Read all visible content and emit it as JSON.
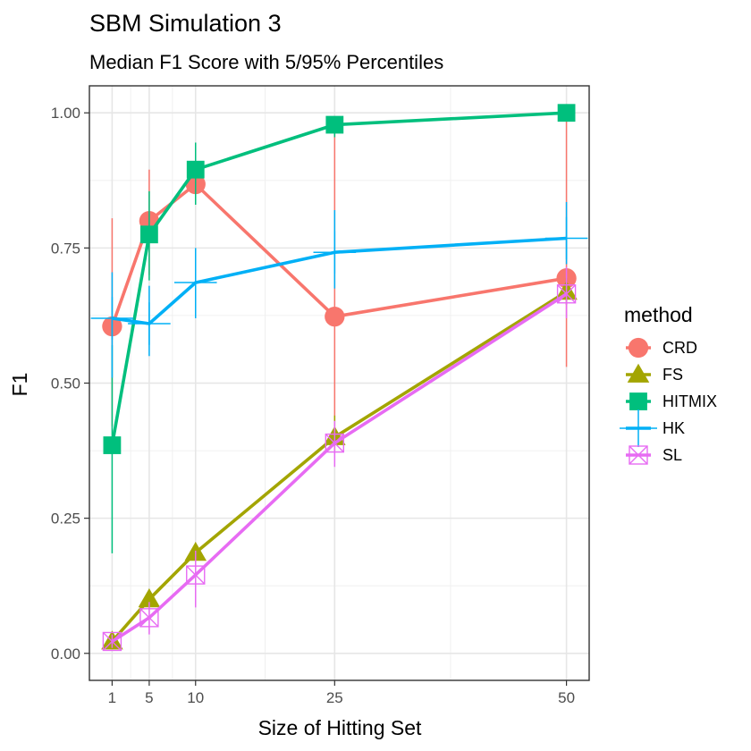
{
  "chart_data": {
    "type": "line",
    "title": "SBM Simulation 3",
    "subtitle": "Median F1 Score with 5/95% Percentiles",
    "xlabel": "Size of Hitting Set",
    "ylabel": "F1",
    "x": [
      1,
      5,
      10,
      25,
      50
    ],
    "xlim": [
      -1.45,
      52.45
    ],
    "ylim": [
      -0.05,
      1.05
    ],
    "x_ticks": [
      1,
      5,
      10,
      25,
      50
    ],
    "x_tick_labels": [
      "1",
      "5",
      "10",
      "25",
      "50"
    ],
    "x_minor_ticks": [
      3,
      7.5,
      17.5,
      37.5
    ],
    "y_ticks": [
      0,
      0.25,
      0.5,
      0.75,
      1.0
    ],
    "y_tick_labels": [
      "0.00",
      "0.25",
      "0.50",
      "0.75",
      "1.00"
    ],
    "grid": true,
    "legend_title": "method",
    "legend_position": "right",
    "series": [
      {
        "name": "CRD",
        "color": "#F8766D",
        "shape": "circle",
        "x": [
          1,
          5,
          10,
          25,
          50
        ],
        "values": [
          0.605,
          0.8,
          0.868,
          0.623,
          0.694
        ],
        "lower": [
          0.42,
          0.7,
          0.83,
          0.43,
          0.53
        ],
        "upper": [
          0.805,
          0.895,
          0.91,
          0.985,
          0.99
        ]
      },
      {
        "name": "FS",
        "color": "#A3A500",
        "shape": "triangle",
        "x": [
          1,
          5,
          10,
          25,
          50
        ],
        "values": [
          0.022,
          0.1,
          0.186,
          0.4,
          0.669
        ],
        "lower": [
          0.012,
          0.085,
          0.165,
          0.375,
          0.645
        ],
        "upper": [
          0.035,
          0.115,
          0.205,
          0.44,
          0.695
        ]
      },
      {
        "name": "HITMIX",
        "color": "#00BF7D",
        "shape": "square",
        "x": [
          1,
          5,
          10,
          25,
          50
        ],
        "values": [
          0.385,
          0.775,
          0.895,
          0.978,
          1.0
        ],
        "lower": [
          0.185,
          0.69,
          0.83,
          0.955,
          0.99
        ],
        "upper": [
          0.57,
          0.855,
          0.945,
          0.99,
          1.0
        ]
      },
      {
        "name": "HK",
        "color": "#00B0F6",
        "shape": "plus",
        "x": [
          1,
          5,
          10,
          25,
          50
        ],
        "values": [
          0.62,
          0.61,
          0.686,
          0.742,
          0.768
        ],
        "lower": [
          0.51,
          0.55,
          0.62,
          0.675,
          0.72
        ],
        "upper": [
          0.705,
          0.68,
          0.75,
          0.82,
          0.835
        ]
      },
      {
        "name": "SL",
        "color": "#E76BF3",
        "shape": "square-x",
        "x": [
          1,
          5,
          10,
          25,
          50
        ],
        "values": [
          0.022,
          0.066,
          0.145,
          0.389,
          0.665
        ],
        "lower": [
          0.01,
          0.035,
          0.085,
          0.345,
          0.62
        ],
        "upper": [
          0.035,
          0.095,
          0.19,
          0.43,
          0.715
        ]
      }
    ]
  }
}
